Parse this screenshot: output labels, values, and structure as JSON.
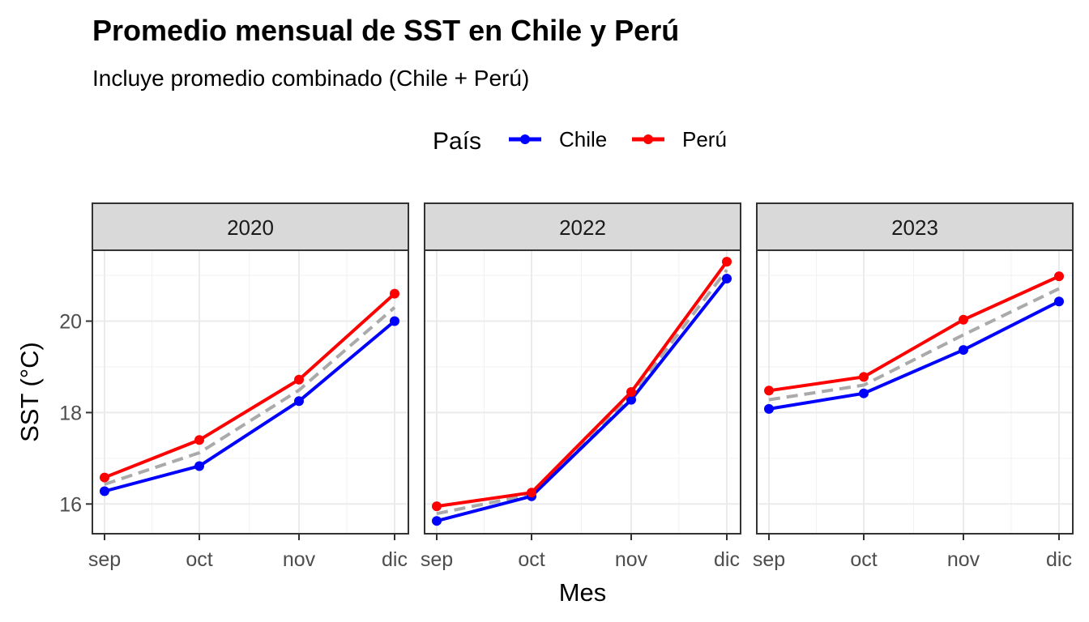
{
  "chart_data": {
    "type": "line",
    "title": "Promedio mensual de SST en Chile y Perú",
    "subtitle": "Incluye promedio combinado (Chile + Perú)",
    "xlabel": "Mes",
    "ylabel": "SST (°C)",
    "legend": {
      "title": "País",
      "placement": "top",
      "entries": [
        {
          "name": "Chile",
          "color": "#0000ff"
        },
        {
          "name": "Perú",
          "color": "#ff0000"
        }
      ]
    },
    "categories": [
      "sep",
      "oct",
      "nov",
      "dic"
    ],
    "yticks": [
      16,
      18,
      20
    ],
    "ylim": [
      15.35,
      21.55
    ],
    "grid": true,
    "combined_line": {
      "color": "#aaaaaa",
      "style": "dashed"
    },
    "facets": [
      {
        "label": "2020",
        "series": [
          {
            "name": "Chile",
            "values": [
              16.28,
              16.83,
              18.25,
              20.0
            ]
          },
          {
            "name": "Perú",
            "values": [
              16.58,
              17.4,
              18.72,
              20.6
            ]
          }
        ],
        "combined": [
          16.43,
          17.12,
          18.49,
          20.3
        ]
      },
      {
        "label": "2022",
        "series": [
          {
            "name": "Chile",
            "values": [
              15.63,
              16.17,
              18.28,
              20.93
            ]
          },
          {
            "name": "Perú",
            "values": [
              15.95,
              16.25,
              18.45,
              21.3
            ]
          }
        ],
        "combined": [
          15.79,
          16.21,
          18.37,
          21.12
        ]
      },
      {
        "label": "2023",
        "series": [
          {
            "name": "Chile",
            "values": [
              18.08,
              18.42,
              19.37,
              20.43
            ]
          },
          {
            "name": "Perú",
            "values": [
              18.48,
              18.78,
              20.03,
              20.98
            ]
          }
        ],
        "combined": [
          18.28,
          18.6,
          19.7,
          20.71
        ]
      }
    ]
  }
}
